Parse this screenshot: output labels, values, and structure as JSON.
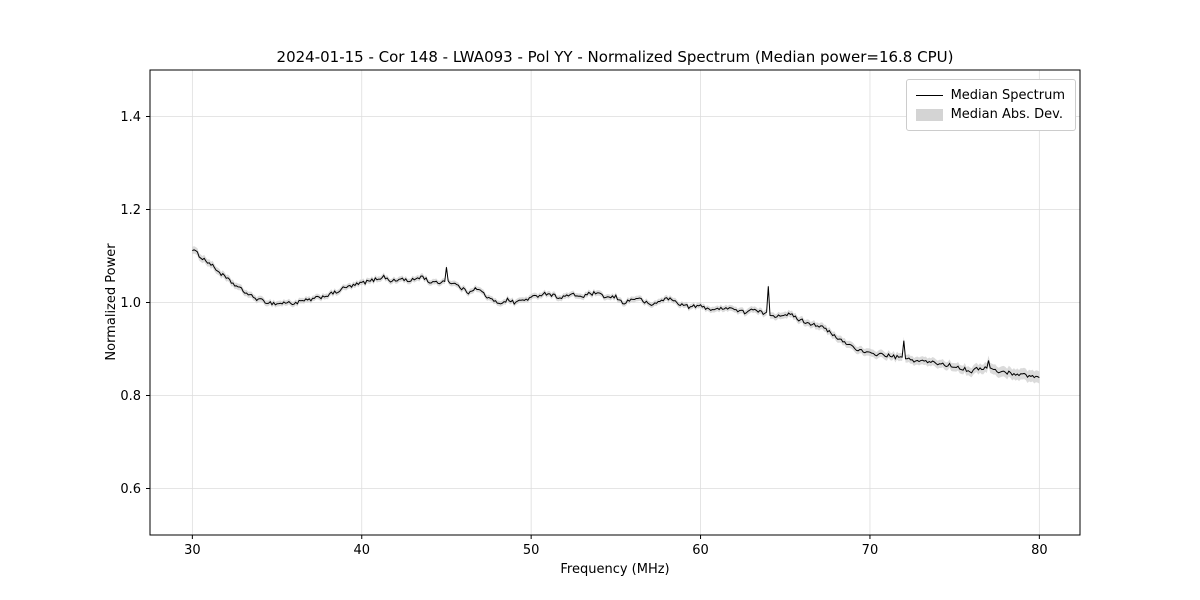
{
  "chart_data": {
    "type": "line",
    "title": "2024-01-15 - Cor 148 - LWA093 - Pol YY - Normalized Spectrum (Median power=16.8 CPU)",
    "xlabel": "Frequency (MHz)",
    "ylabel": "Normalized Power",
    "xlim": [
      27.5,
      82.4
    ],
    "ylim": [
      0.5,
      1.5
    ],
    "xticks": [
      30,
      40,
      50,
      60,
      70,
      80
    ],
    "yticks": [
      0.6,
      0.8,
      1.0,
      1.2,
      1.4
    ],
    "grid": true,
    "line_color": "#000000",
    "band_color": "#c8c8c8",
    "grid_color": "#dddddd",
    "legend": {
      "position": "upper right",
      "entries": [
        {
          "label": "Median Spectrum",
          "type": "line",
          "color": "#000000"
        },
        {
          "label": "Median Abs. Dev.",
          "type": "patch",
          "color": "#d4d4d4"
        }
      ]
    },
    "noise_amplitude": 0.004,
    "resolution_mhz": 0.1,
    "series": [
      {
        "name": "Median Spectrum",
        "points": [
          [
            30.0,
            1.115
          ],
          [
            30.3,
            1.105
          ],
          [
            30.6,
            1.095
          ],
          [
            31.0,
            1.085
          ],
          [
            31.5,
            1.068
          ],
          [
            32.0,
            1.052
          ],
          [
            32.5,
            1.038
          ],
          [
            33.0,
            1.025
          ],
          [
            33.5,
            1.013
          ],
          [
            34.0,
            1.005
          ],
          [
            34.5,
            1.0
          ],
          [
            35.0,
            0.997
          ],
          [
            35.5,
            1.0
          ],
          [
            36.0,
            0.998
          ],
          [
            36.5,
            1.003
          ],
          [
            37.0,
            1.006
          ],
          [
            37.5,
            1.011
          ],
          [
            38.0,
            1.016
          ],
          [
            38.5,
            1.022
          ],
          [
            39.0,
            1.032
          ],
          [
            39.5,
            1.036
          ],
          [
            40.0,
            1.042
          ],
          [
            40.5,
            1.046
          ],
          [
            41.0,
            1.052
          ],
          [
            41.3,
            1.056
          ],
          [
            41.6,
            1.048
          ],
          [
            42.0,
            1.046
          ],
          [
            42.4,
            1.052
          ],
          [
            42.8,
            1.044
          ],
          [
            43.2,
            1.052
          ],
          [
            43.6,
            1.056
          ],
          [
            44.0,
            1.044
          ],
          [
            44.4,
            1.042
          ],
          [
            44.9,
            1.046
          ],
          [
            45.0,
            1.08
          ],
          [
            45.1,
            1.045
          ],
          [
            45.5,
            1.04
          ],
          [
            46.0,
            1.028
          ],
          [
            46.3,
            1.022
          ],
          [
            46.6,
            1.03
          ],
          [
            47.0,
            1.026
          ],
          [
            47.4,
            1.012
          ],
          [
            47.8,
            1.002
          ],
          [
            48.2,
            0.999
          ],
          [
            48.6,
            1.006
          ],
          [
            49.0,
            1.0
          ],
          [
            49.4,
            1.004
          ],
          [
            49.8,
            1.008
          ],
          [
            50.2,
            1.012
          ],
          [
            50.6,
            1.018
          ],
          [
            51.0,
            1.02
          ],
          [
            51.4,
            1.014
          ],
          [
            51.8,
            1.01
          ],
          [
            52.2,
            1.016
          ],
          [
            52.6,
            1.016
          ],
          [
            53.0,
            1.012
          ],
          [
            53.4,
            1.018
          ],
          [
            53.8,
            1.02
          ],
          [
            54.2,
            1.014
          ],
          [
            54.6,
            1.01
          ],
          [
            55.0,
            1.012
          ],
          [
            55.4,
            0.999
          ],
          [
            55.8,
            1.004
          ],
          [
            56.2,
            1.01
          ],
          [
            56.6,
            1.004
          ],
          [
            57.0,
            0.994
          ],
          [
            57.4,
            0.999
          ],
          [
            57.8,
            1.007
          ],
          [
            58.2,
            1.008
          ],
          [
            58.6,
            1.0
          ],
          [
            59.0,
            0.994
          ],
          [
            59.4,
            0.99
          ],
          [
            59.8,
            0.993
          ],
          [
            60.2,
            0.99
          ],
          [
            60.6,
            0.986
          ],
          [
            61.0,
            0.984
          ],
          [
            61.4,
            0.99
          ],
          [
            61.8,
            0.988
          ],
          [
            62.2,
            0.982
          ],
          [
            62.6,
            0.979
          ],
          [
            63.0,
            0.985
          ],
          [
            63.4,
            0.98
          ],
          [
            63.9,
            0.976
          ],
          [
            64.0,
            1.032
          ],
          [
            64.1,
            0.974
          ],
          [
            64.5,
            0.971
          ],
          [
            65.0,
            0.976
          ],
          [
            65.4,
            0.972
          ],
          [
            65.8,
            0.964
          ],
          [
            66.2,
            0.958
          ],
          [
            66.6,
            0.954
          ],
          [
            67.0,
            0.95
          ],
          [
            67.4,
            0.942
          ],
          [
            67.8,
            0.93
          ],
          [
            68.2,
            0.92
          ],
          [
            68.6,
            0.913
          ],
          [
            69.0,
            0.905
          ],
          [
            69.4,
            0.897
          ],
          [
            69.8,
            0.891
          ],
          [
            70.2,
            0.889
          ],
          [
            70.6,
            0.889
          ],
          [
            71.0,
            0.886
          ],
          [
            71.5,
            0.883
          ],
          [
            71.9,
            0.88
          ],
          [
            72.0,
            0.921
          ],
          [
            72.1,
            0.878
          ],
          [
            72.5,
            0.876
          ],
          [
            73.0,
            0.874
          ],
          [
            73.5,
            0.872
          ],
          [
            74.0,
            0.869
          ],
          [
            74.5,
            0.866
          ],
          [
            75.0,
            0.863
          ],
          [
            75.5,
            0.858
          ],
          [
            76.0,
            0.852
          ],
          [
            76.4,
            0.858
          ],
          [
            76.9,
            0.86
          ],
          [
            77.0,
            0.874
          ],
          [
            77.1,
            0.858
          ],
          [
            77.5,
            0.852
          ],
          [
            78.0,
            0.85
          ],
          [
            78.5,
            0.847
          ],
          [
            79.0,
            0.845
          ],
          [
            79.5,
            0.842
          ],
          [
            80.0,
            0.838
          ]
        ]
      }
    ],
    "band": {
      "name": "Median Abs. Dev.",
      "halfwidth_points": [
        [
          30.0,
          0.008
        ],
        [
          35.0,
          0.006
        ],
        [
          45.0,
          0.006
        ],
        [
          60.0,
          0.006
        ],
        [
          70.0,
          0.008
        ],
        [
          75.0,
          0.009
        ],
        [
          80.0,
          0.013
        ]
      ]
    }
  }
}
